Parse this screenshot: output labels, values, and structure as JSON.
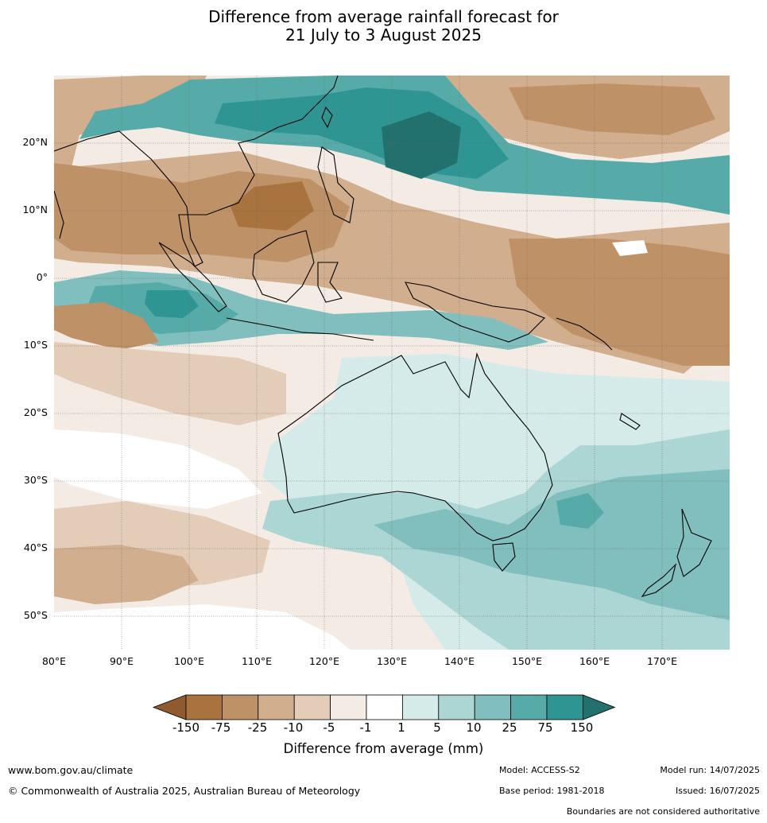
{
  "title_line1": "Difference from average rainfall forecast for",
  "title_line2": "21 July to 3 August 2025",
  "map": {
    "lat_labels": [
      "20°N",
      "10°N",
      "0°",
      "10°S",
      "20°S",
      "30°S",
      "40°S",
      "50°S"
    ],
    "lon_labels": [
      "80°E",
      "90°E",
      "100°E",
      "110°E",
      "120°E",
      "130°E",
      "140°E",
      "150°E",
      "160°E",
      "170°E"
    ],
    "extent": {
      "lon": [
        80,
        180
      ],
      "lat": [
        -55,
        30
      ]
    },
    "grid": true
  },
  "colorbar": {
    "title": "Difference from average (mm)",
    "tick_labels": [
      "-150",
      "-75",
      "-25",
      "-10",
      "-5",
      "-1",
      "1",
      "5",
      "10",
      "25",
      "75",
      "150"
    ],
    "colors": [
      "#8f5a2d",
      "#a8733e",
      "#bf9166",
      "#d1ae8d",
      "#e3cdb8",
      "#f4ebe4",
      "#ffffff",
      "#d5ebea",
      "#abd6d4",
      "#80bfbd",
      "#56aba8",
      "#2e9592",
      "#23716f"
    ]
  },
  "footer": {
    "website": "www.bom.gov.au/climate",
    "copyright": "© Commonwealth of Australia 2025, Australian Bureau of Meteorology",
    "model": "Model: ACCESS-S2",
    "base_period": "Base period: 1981-2018",
    "model_run": "Model run: 14/07/2025",
    "issued": "Issued: 16/07/2025",
    "boundaries": "Boundaries are not considered authoritative"
  }
}
